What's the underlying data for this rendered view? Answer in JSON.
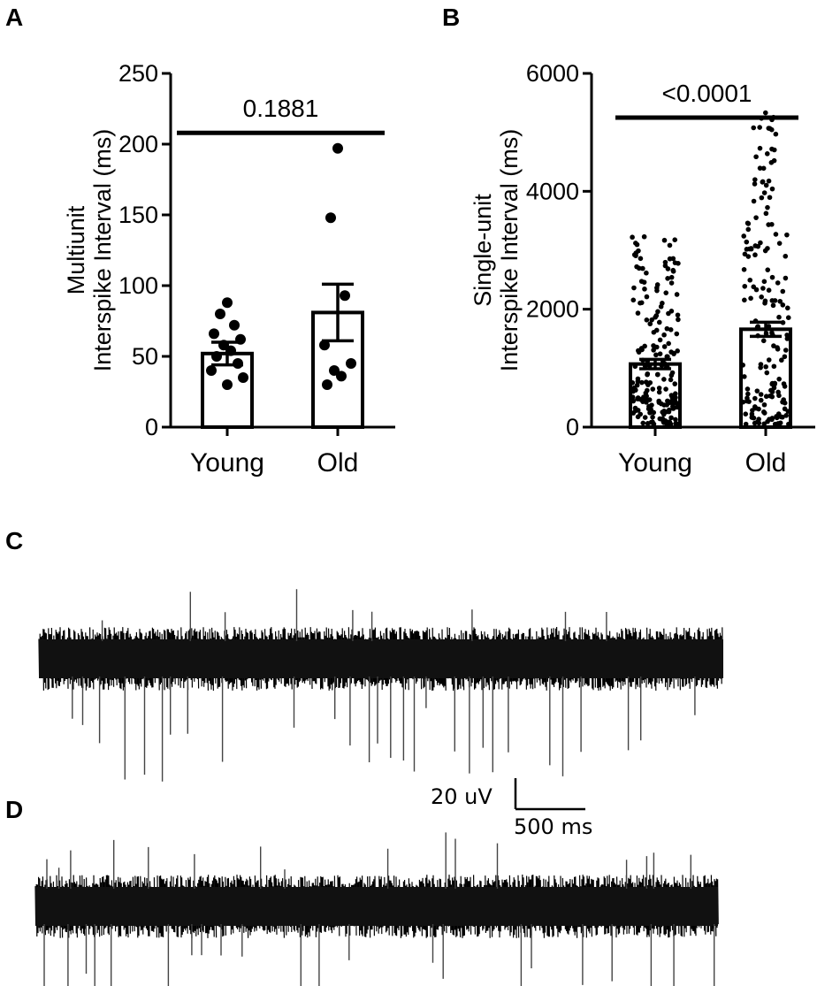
{
  "panels": {
    "a": "A",
    "b": "B",
    "c": "C",
    "d": "D"
  },
  "scalebar": {
    "vertical_label": "20 uV",
    "horizontal_label": "500 ms"
  },
  "chart_data": [
    {
      "type": "bar",
      "panel": "A",
      "categories": [
        "Young",
        "Old"
      ],
      "ylabel_lines": [
        "Multiunit",
        "Interspike Interval (ms)"
      ],
      "ylim": [
        0,
        250
      ],
      "yticks": [
        0,
        50,
        100,
        150,
        200,
        250
      ],
      "bars": [
        {
          "category": "Young",
          "mean": 52,
          "sem": 8
        },
        {
          "category": "Old",
          "mean": 81,
          "sem": 20
        }
      ],
      "points": [
        {
          "category": "Young",
          "values": [
            88,
            80,
            72,
            66,
            62,
            58,
            54,
            50,
            45,
            40,
            35,
            30
          ]
        },
        {
          "category": "Old",
          "values": [
            197,
            148,
            93,
            58,
            45,
            40,
            36,
            30
          ]
        }
      ],
      "significance": {
        "label": "0.1881",
        "y": 208
      }
    },
    {
      "type": "bar",
      "panel": "B",
      "categories": [
        "Young",
        "Old"
      ],
      "ylabel_lines": [
        "Single-unit",
        "Interspike Interval (ms)"
      ],
      "ylim": [
        0,
        6000
      ],
      "yticks": [
        0,
        2000,
        4000,
        6000
      ],
      "bars": [
        {
          "category": "Young",
          "mean": 1070,
          "sem": 80
        },
        {
          "category": "Old",
          "mean": 1660,
          "sem": 120
        }
      ],
      "points": [
        {
          "category": "Young",
          "n": 190,
          "min": 50,
          "max": 3250
        },
        {
          "category": "Old",
          "n": 170,
          "min": 50,
          "max": 5350
        }
      ],
      "significance": {
        "label": "<0.0001",
        "y": 5250
      }
    },
    {
      "type": "trace",
      "panel": "C",
      "description": "extracellular recording trace"
    },
    {
      "type": "trace",
      "panel": "D",
      "description": "extracellular recording trace"
    }
  ]
}
